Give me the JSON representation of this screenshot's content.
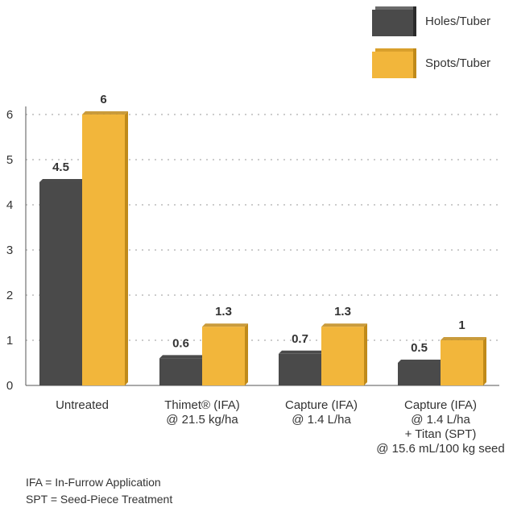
{
  "chart_data": {
    "type": "bar",
    "categories": [
      [
        "Untreated"
      ],
      [
        "Thimet® (IFA)",
        "@ 21.5 kg/ha"
      ],
      [
        "Capture (IFA)",
        "@ 1.4 L/ha"
      ],
      [
        "Capture (IFA)",
        "@ 1.4 L/ha",
        "+ Titan (SPT)",
        "@ 15.6 mL/100 kg seed"
      ]
    ],
    "series": [
      {
        "name": "Holes/Tuber",
        "values": [
          4.5,
          0.6,
          0.7,
          0.5
        ],
        "color": "#4a4a4a",
        "side_color": "#2b2b2b"
      },
      {
        "name": "Spots/Tuber",
        "values": [
          6,
          1.3,
          1.3,
          1
        ],
        "color": "#f2b63b",
        "side_color": "#c08a1a"
      }
    ],
    "data_labels": [
      [
        "4.5",
        "0.6",
        "0.7",
        "0.5"
      ],
      [
        "6",
        "1.3",
        "1.3",
        "1"
      ]
    ],
    "y_ticks": [
      0,
      1,
      2,
      3,
      4,
      5,
      6
    ],
    "ylim": [
      0,
      6
    ],
    "grid": true,
    "legend_position": "top-right"
  },
  "notes": [
    "IFA = In-Furrow Application",
    "SPT = Seed-Piece Treatment"
  ]
}
